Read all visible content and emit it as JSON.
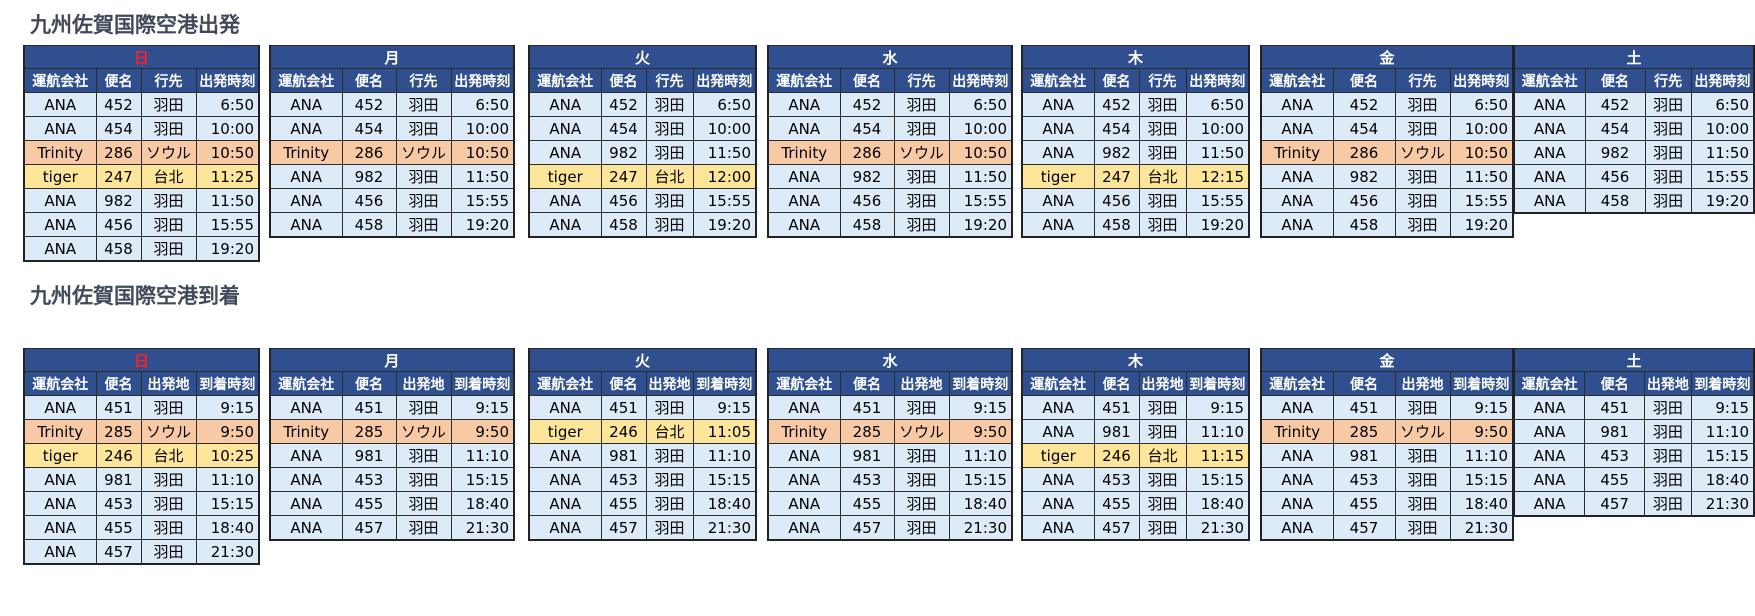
{
  "departures": {
    "title": "九州佐賀国際空港出発",
    "columns": [
      "運航会社",
      "便名",
      "行先",
      "出発時刻"
    ],
    "days": [
      {
        "label": "日",
        "rows": [
          {
            "airline": "ANA",
            "flight": "452",
            "place": "羽田",
            "time": "6:50"
          },
          {
            "airline": "ANA",
            "flight": "454",
            "place": "羽田",
            "time": "10:00"
          },
          {
            "airline": "Trinity",
            "flight": "286",
            "place": "ソウル",
            "time": "10:50"
          },
          {
            "airline": "tiger",
            "flight": "247",
            "place": "台北",
            "time": "11:25"
          },
          {
            "airline": "ANA",
            "flight": "982",
            "place": "羽田",
            "time": "11:50"
          },
          {
            "airline": "ANA",
            "flight": "456",
            "place": "羽田",
            "time": "15:55"
          },
          {
            "airline": "ANA",
            "flight": "458",
            "place": "羽田",
            "time": "19:20"
          }
        ]
      },
      {
        "label": "月",
        "rows": [
          {
            "airline": "ANA",
            "flight": "452",
            "place": "羽田",
            "time": "6:50"
          },
          {
            "airline": "ANA",
            "flight": "454",
            "place": "羽田",
            "time": "10:00"
          },
          {
            "airline": "Trinity",
            "flight": "286",
            "place": "ソウル",
            "time": "10:50"
          },
          {
            "airline": "ANA",
            "flight": "982",
            "place": "羽田",
            "time": "11:50"
          },
          {
            "airline": "ANA",
            "flight": "456",
            "place": "羽田",
            "time": "15:55"
          },
          {
            "airline": "ANA",
            "flight": "458",
            "place": "羽田",
            "time": "19:20"
          }
        ]
      },
      {
        "label": "火",
        "rows": [
          {
            "airline": "ANA",
            "flight": "452",
            "place": "羽田",
            "time": "6:50"
          },
          {
            "airline": "ANA",
            "flight": "454",
            "place": "羽田",
            "time": "10:00"
          },
          {
            "airline": "ANA",
            "flight": "982",
            "place": "羽田",
            "time": "11:50"
          },
          {
            "airline": "tiger",
            "flight": "247",
            "place": "台北",
            "time": "12:00"
          },
          {
            "airline": "ANA",
            "flight": "456",
            "place": "羽田",
            "time": "15:55"
          },
          {
            "airline": "ANA",
            "flight": "458",
            "place": "羽田",
            "time": "19:20"
          }
        ]
      },
      {
        "label": "水",
        "rows": [
          {
            "airline": "ANA",
            "flight": "452",
            "place": "羽田",
            "time": "6:50"
          },
          {
            "airline": "ANA",
            "flight": "454",
            "place": "羽田",
            "time": "10:00"
          },
          {
            "airline": "Trinity",
            "flight": "286",
            "place": "ソウル",
            "time": "10:50"
          },
          {
            "airline": "ANA",
            "flight": "982",
            "place": "羽田",
            "time": "11:50"
          },
          {
            "airline": "ANA",
            "flight": "456",
            "place": "羽田",
            "time": "15:55"
          },
          {
            "airline": "ANA",
            "flight": "458",
            "place": "羽田",
            "time": "19:20"
          }
        ]
      },
      {
        "label": "木",
        "rows": [
          {
            "airline": "ANA",
            "flight": "452",
            "place": "羽田",
            "time": "6:50"
          },
          {
            "airline": "ANA",
            "flight": "454",
            "place": "羽田",
            "time": "10:00"
          },
          {
            "airline": "ANA",
            "flight": "982",
            "place": "羽田",
            "time": "11:50"
          },
          {
            "airline": "tiger",
            "flight": "247",
            "place": "台北",
            "time": "12:15"
          },
          {
            "airline": "ANA",
            "flight": "456",
            "place": "羽田",
            "time": "15:55"
          },
          {
            "airline": "ANA",
            "flight": "458",
            "place": "羽田",
            "time": "19:20"
          }
        ]
      },
      {
        "label": "金",
        "rows": [
          {
            "airline": "ANA",
            "flight": "452",
            "place": "羽田",
            "time": "6:50"
          },
          {
            "airline": "ANA",
            "flight": "454",
            "place": "羽田",
            "time": "10:00"
          },
          {
            "airline": "Trinity",
            "flight": "286",
            "place": "ソウル",
            "time": "10:50"
          },
          {
            "airline": "ANA",
            "flight": "982",
            "place": "羽田",
            "time": "11:50"
          },
          {
            "airline": "ANA",
            "flight": "456",
            "place": "羽田",
            "time": "15:55"
          },
          {
            "airline": "ANA",
            "flight": "458",
            "place": "羽田",
            "time": "19:20"
          }
        ]
      },
      {
        "label": "土",
        "rows": [
          {
            "airline": "ANA",
            "flight": "452",
            "place": "羽田",
            "time": "6:50"
          },
          {
            "airline": "ANA",
            "flight": "454",
            "place": "羽田",
            "time": "10:00"
          },
          {
            "airline": "ANA",
            "flight": "982",
            "place": "羽田",
            "time": "11:50"
          },
          {
            "airline": "ANA",
            "flight": "456",
            "place": "羽田",
            "time": "15:55"
          },
          {
            "airline": "ANA",
            "flight": "458",
            "place": "羽田",
            "time": "19:20"
          }
        ]
      }
    ]
  },
  "arrivals": {
    "title": "九州佐賀国際空港到着",
    "columns": [
      "運航会社",
      "便名",
      "出発地",
      "到着時刻"
    ],
    "days": [
      {
        "label": "日",
        "rows": [
          {
            "airline": "ANA",
            "flight": "451",
            "place": "羽田",
            "time": "9:15"
          },
          {
            "airline": "Trinity",
            "flight": "285",
            "place": "ソウル",
            "time": "9:50"
          },
          {
            "airline": "tiger",
            "flight": "246",
            "place": "台北",
            "time": "10:25"
          },
          {
            "airline": "ANA",
            "flight": "981",
            "place": "羽田",
            "time": "11:10"
          },
          {
            "airline": "ANA",
            "flight": "453",
            "place": "羽田",
            "time": "15:15"
          },
          {
            "airline": "ANA",
            "flight": "455",
            "place": "羽田",
            "time": "18:40"
          },
          {
            "airline": "ANA",
            "flight": "457",
            "place": "羽田",
            "time": "21:30"
          }
        ]
      },
      {
        "label": "月",
        "rows": [
          {
            "airline": "ANA",
            "flight": "451",
            "place": "羽田",
            "time": "9:15"
          },
          {
            "airline": "Trinity",
            "flight": "285",
            "place": "ソウル",
            "time": "9:50"
          },
          {
            "airline": "ANA",
            "flight": "981",
            "place": "羽田",
            "time": "11:10"
          },
          {
            "airline": "ANA",
            "flight": "453",
            "place": "羽田",
            "time": "15:15"
          },
          {
            "airline": "ANA",
            "flight": "455",
            "place": "羽田",
            "time": "18:40"
          },
          {
            "airline": "ANA",
            "flight": "457",
            "place": "羽田",
            "time": "21:30"
          }
        ]
      },
      {
        "label": "火",
        "rows": [
          {
            "airline": "ANA",
            "flight": "451",
            "place": "羽田",
            "time": "9:15"
          },
          {
            "airline": "tiger",
            "flight": "246",
            "place": "台北",
            "time": "11:05"
          },
          {
            "airline": "ANA",
            "flight": "981",
            "place": "羽田",
            "time": "11:10"
          },
          {
            "airline": "ANA",
            "flight": "453",
            "place": "羽田",
            "time": "15:15"
          },
          {
            "airline": "ANA",
            "flight": "455",
            "place": "羽田",
            "time": "18:40"
          },
          {
            "airline": "ANA",
            "flight": "457",
            "place": "羽田",
            "time": "21:30"
          }
        ]
      },
      {
        "label": "水",
        "rows": [
          {
            "airline": "ANA",
            "flight": "451",
            "place": "羽田",
            "time": "9:15"
          },
          {
            "airline": "Trinity",
            "flight": "285",
            "place": "ソウル",
            "time": "9:50"
          },
          {
            "airline": "ANA",
            "flight": "981",
            "place": "羽田",
            "time": "11:10"
          },
          {
            "airline": "ANA",
            "flight": "453",
            "place": "羽田",
            "time": "15:15"
          },
          {
            "airline": "ANA",
            "flight": "455",
            "place": "羽田",
            "time": "18:40"
          },
          {
            "airline": "ANA",
            "flight": "457",
            "place": "羽田",
            "time": "21:30"
          }
        ]
      },
      {
        "label": "木",
        "rows": [
          {
            "airline": "ANA",
            "flight": "451",
            "place": "羽田",
            "time": "9:15"
          },
          {
            "airline": "ANA",
            "flight": "981",
            "place": "羽田",
            "time": "11:10"
          },
          {
            "airline": "tiger",
            "flight": "246",
            "place": "台北",
            "time": "11:15"
          },
          {
            "airline": "ANA",
            "flight": "453",
            "place": "羽田",
            "time": "15:15"
          },
          {
            "airline": "ANA",
            "flight": "455",
            "place": "羽田",
            "time": "18:40"
          },
          {
            "airline": "ANA",
            "flight": "457",
            "place": "羽田",
            "time": "21:30"
          }
        ]
      },
      {
        "label": "金",
        "rows": [
          {
            "airline": "ANA",
            "flight": "451",
            "place": "羽田",
            "time": "9:15"
          },
          {
            "airline": "Trinity",
            "flight": "285",
            "place": "ソウル",
            "time": "9:50"
          },
          {
            "airline": "ANA",
            "flight": "981",
            "place": "羽田",
            "time": "11:10"
          },
          {
            "airline": "ANA",
            "flight": "453",
            "place": "羽田",
            "time": "15:15"
          },
          {
            "airline": "ANA",
            "flight": "455",
            "place": "羽田",
            "time": "18:40"
          },
          {
            "airline": "ANA",
            "flight": "457",
            "place": "羽田",
            "time": "21:30"
          }
        ]
      },
      {
        "label": "土",
        "rows": [
          {
            "airline": "ANA",
            "flight": "451",
            "place": "羽田",
            "time": "9:15"
          },
          {
            "airline": "ANA",
            "flight": "981",
            "place": "羽田",
            "time": "11:10"
          },
          {
            "airline": "ANA",
            "flight": "453",
            "place": "羽田",
            "time": "15:15"
          },
          {
            "airline": "ANA",
            "flight": "455",
            "place": "羽田",
            "time": "18:40"
          },
          {
            "airline": "ANA",
            "flight": "457",
            "place": "羽田",
            "time": "21:30"
          }
        ]
      }
    ]
  },
  "colors": {
    "header_bg": "#2f4f8f",
    "sunday_label": "#ff2020",
    "cell_bg": "#ddeaf7",
    "trinity_bg": "#f8c9a5",
    "tiger_bg": "#fde59a"
  }
}
